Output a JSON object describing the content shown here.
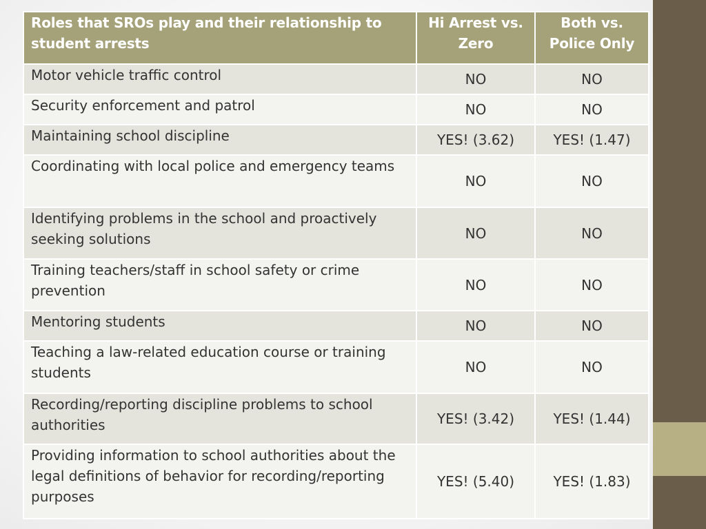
{
  "table": {
    "headers": [
      "Roles that SROs play and their relationship to student arrests",
      "Hi Arrest vs. Zero",
      "Both vs. Police Only"
    ],
    "rows": [
      {
        "role": "Motor vehicle traffic control",
        "hi_vs_zero": "NO",
        "both_vs_police": "NO"
      },
      {
        "role": "Security enforcement and patrol",
        "hi_vs_zero": "NO",
        "both_vs_police": "NO"
      },
      {
        "role": "Maintaining school discipline",
        "hi_vs_zero": "YES! (3.62)",
        "both_vs_police": "YES! (1.47)"
      },
      {
        "role": "Coordinating with local police and emergency teams",
        "hi_vs_zero": "NO",
        "both_vs_police": "NO"
      },
      {
        "role": "Identifying problems in the school and proactively seeking solutions",
        "hi_vs_zero": "NO",
        "both_vs_police": "NO"
      },
      {
        "role": "Training teachers/staff in school safety or crime prevention",
        "hi_vs_zero": "NO",
        "both_vs_police": "NO"
      },
      {
        "role": "Mentoring students",
        "hi_vs_zero": "NO",
        "both_vs_police": "NO"
      },
      {
        "role": "Teaching a law-related education course or training students",
        "hi_vs_zero": "NO",
        "both_vs_police": "NO"
      },
      {
        "role": "Recording/reporting discipline problems to school authorities",
        "hi_vs_zero": "YES! (3.42)",
        "both_vs_police": "YES! (1.44)"
      },
      {
        "role": "Providing information to school authorities about the legal definitions of behavior for recording/reporting purposes",
        "hi_vs_zero": "YES! (5.40)",
        "both_vs_police": "YES! (1.83)"
      }
    ]
  },
  "theme": {
    "header_bg": "#a5a179",
    "row_odd_bg": "#e4e4dc",
    "row_even_bg": "#f3f3f0",
    "side_bar": "#6a5e4a",
    "side_accent": "#b6b084"
  }
}
